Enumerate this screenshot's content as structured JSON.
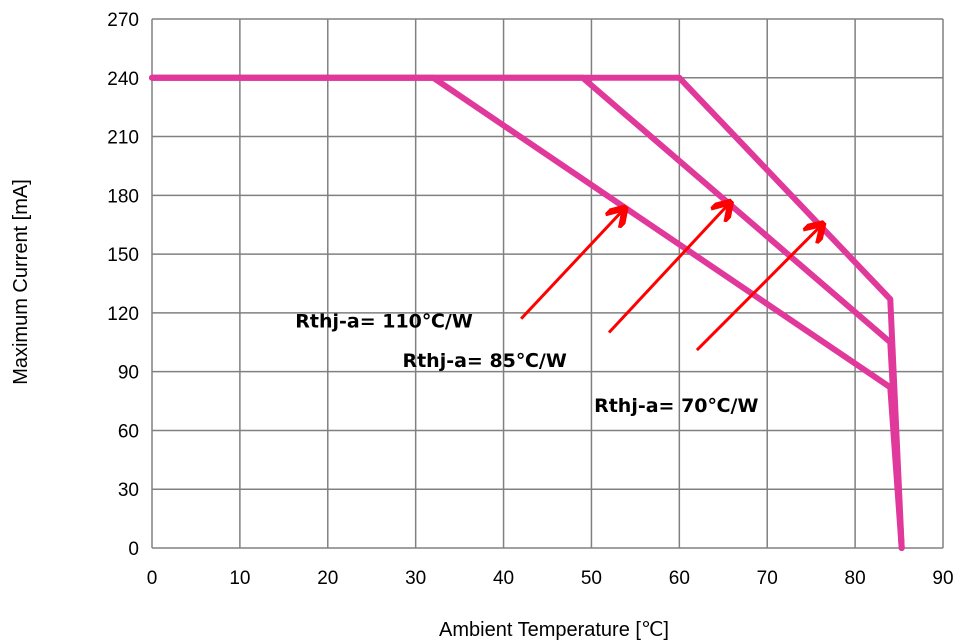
{
  "chart_data": {
    "type": "line",
    "xlabel": "Ambient Temperature [℃]",
    "ylabel": "Maximum Current [mA]",
    "xlim": [
      0,
      90
    ],
    "ylim": [
      0,
      270
    ],
    "xticks": [
      0,
      10,
      20,
      30,
      40,
      50,
      60,
      70,
      80,
      90
    ],
    "yticks": [
      0,
      30,
      60,
      90,
      120,
      150,
      180,
      210,
      240,
      270
    ],
    "grid": true,
    "line_color": "#e0399b",
    "arrow_color": "#ff0000",
    "series": [
      {
        "x": [
          0,
          32,
          84,
          85.3
        ],
        "y": [
          240,
          240,
          82,
          0
        ]
      },
      {
        "x": [
          0,
          49,
          84,
          85.3
        ],
        "y": [
          240,
          240,
          105,
          0
        ]
      },
      {
        "x": [
          0,
          60,
          84,
          85.3
        ],
        "y": [
          240,
          240,
          127,
          0
        ]
      }
    ],
    "annotations": [
      {
        "text": "Rthj-a= 110℃/W",
        "label_x": 16.3,
        "label_y": 116,
        "arrow_from": [
          42,
          117
        ],
        "arrow_to": [
          53.5,
          172
        ]
      },
      {
        "text": "Rthj-a= 85℃/W",
        "label_x": 28.5,
        "label_y": 96,
        "arrow_from": [
          52,
          110
        ],
        "arrow_to": [
          65.5,
          175
        ]
      },
      {
        "text": "Rthj-a= 70℃/W",
        "label_x": 50.3,
        "label_y": 73,
        "arrow_from": [
          62,
          101
        ],
        "arrow_to": [
          76,
          164
        ]
      }
    ]
  }
}
